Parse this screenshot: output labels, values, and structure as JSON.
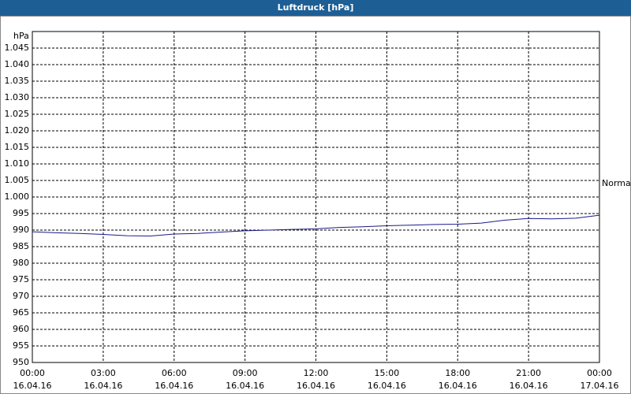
{
  "chart_data": {
    "type": "line",
    "title": "Luftdruck [hPa]",
    "y_unit": "hPa",
    "annotation": "Normal",
    "x": [
      0,
      1,
      2,
      3,
      4,
      5,
      6,
      7,
      8,
      9,
      10,
      11,
      12,
      13,
      14,
      15,
      16,
      17,
      18,
      19,
      20,
      21,
      22,
      23,
      24
    ],
    "series": [
      {
        "name": "Luftdruck",
        "color": "#1a1a8c",
        "values": [
          989.5,
          989.2,
          989.0,
          988.7,
          988.3,
          988.2,
          988.8,
          989.0,
          989.4,
          989.8,
          990.0,
          990.2,
          990.4,
          990.8,
          991.0,
          991.3,
          991.5,
          991.7,
          991.8,
          992.1,
          993.0,
          993.5,
          993.4,
          993.6,
          994.5
        ]
      }
    ],
    "xlim": [
      0,
      24
    ],
    "xticks": [
      {
        "value": 0,
        "label": [
          "00:00",
          "16.04.16"
        ]
      },
      {
        "value": 3,
        "label": [
          "03:00",
          "16.04.16"
        ]
      },
      {
        "value": 6,
        "label": [
          "06:00",
          "16.04.16"
        ]
      },
      {
        "value": 9,
        "label": [
          "09:00",
          "16.04.16"
        ]
      },
      {
        "value": 12,
        "label": [
          "12:00",
          "16.04.16"
        ]
      },
      {
        "value": 15,
        "label": [
          "15:00",
          "16.04.16"
        ]
      },
      {
        "value": 18,
        "label": [
          "18:00",
          "16.04.16"
        ]
      },
      {
        "value": 21,
        "label": [
          "21:00",
          "16.04.16"
        ]
      },
      {
        "value": 24,
        "label": [
          "00:00",
          "17.04.16"
        ]
      }
    ],
    "ylim": [
      950,
      1050
    ],
    "yticks": [
      950,
      955,
      960,
      965,
      970,
      975,
      980,
      985,
      990,
      995,
      {
        "value": 1000,
        "label": "1.000"
      },
      {
        "value": 1005,
        "label": "1.005"
      },
      {
        "value": 1010,
        "label": "1.010"
      },
      {
        "value": 1015,
        "label": "1.015"
      },
      {
        "value": 1020,
        "label": "1.020"
      },
      {
        "value": 1025,
        "label": "1.025"
      },
      {
        "value": 1030,
        "label": "1.030"
      },
      {
        "value": 1035,
        "label": "1.035"
      },
      {
        "value": 1040,
        "label": "1.040"
      },
      {
        "value": 1045,
        "label": "1.045"
      }
    ],
    "grid": true
  }
}
